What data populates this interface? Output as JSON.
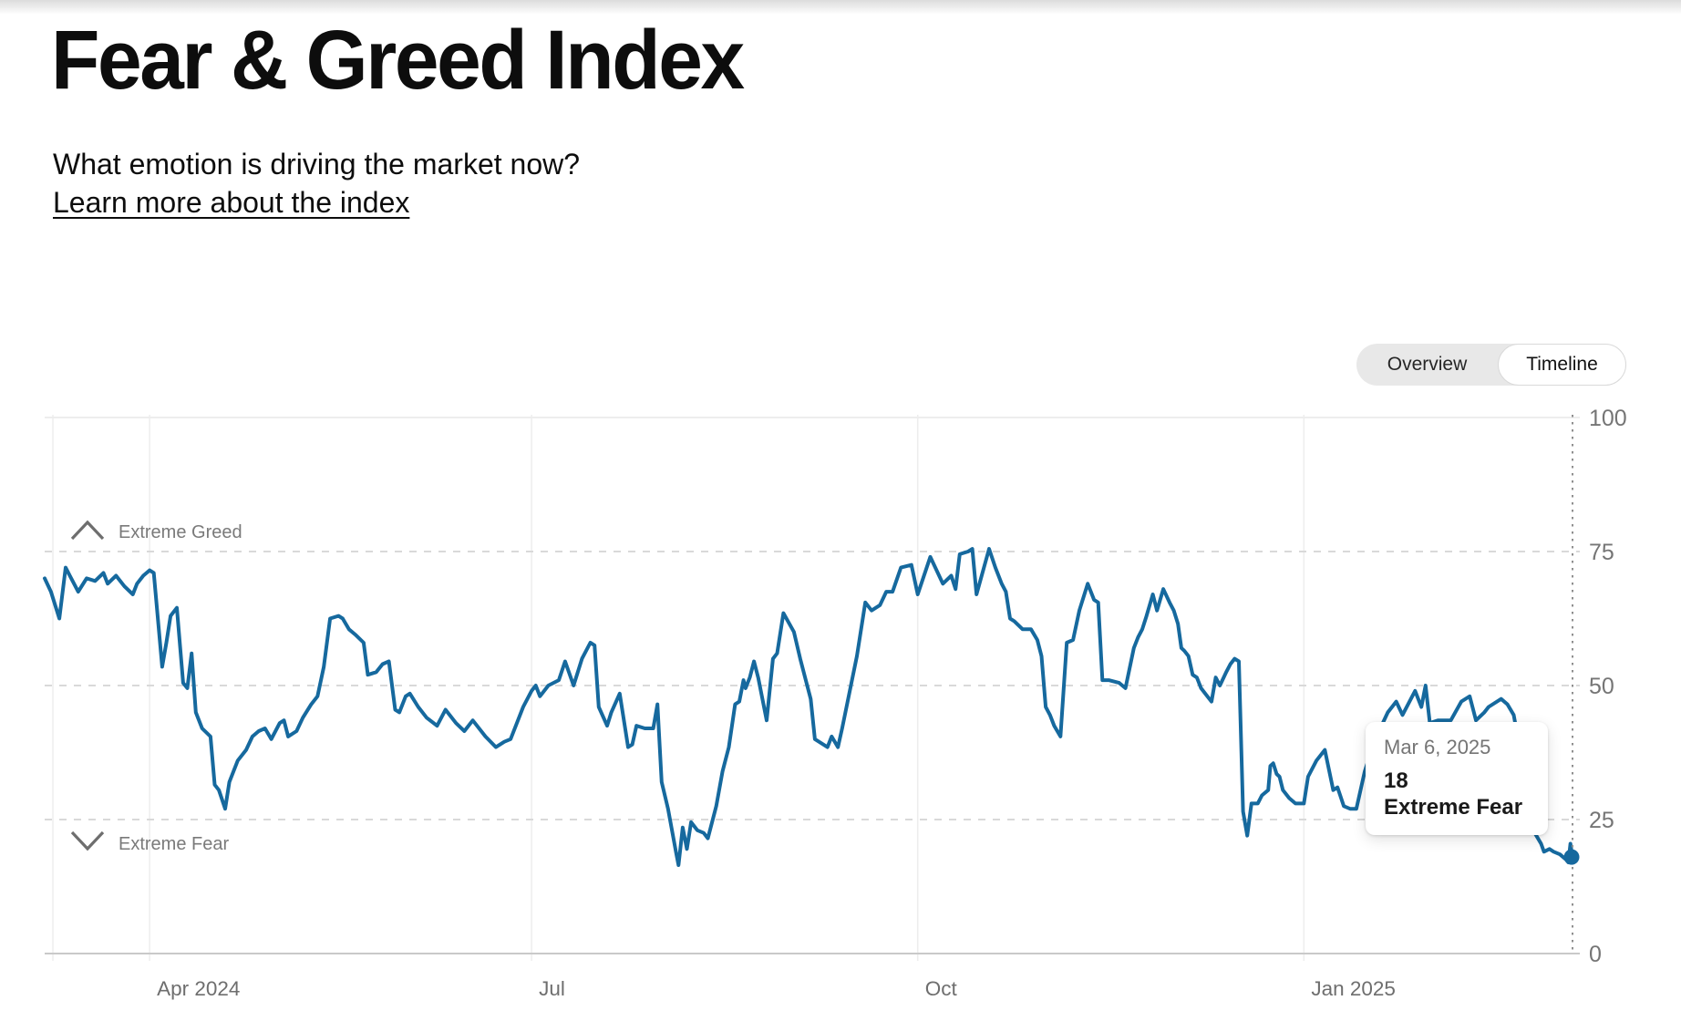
{
  "header": {
    "title": "Fear & Greed Index",
    "subtitle": "What emotion is driving the market now?",
    "link_label": "Learn more about the index"
  },
  "toggle": {
    "options": [
      "Overview",
      "Timeline"
    ],
    "selected": "Timeline"
  },
  "chart_data": {
    "type": "line",
    "title": "Fear & Greed Index timeline",
    "series_name": "Fear & Greed Index (market sentiment, 0-100)",
    "line_color": "#16699e",
    "x_axis": {
      "start_date": "Mar 7, 2024",
      "end_date": "Mar 6, 2025",
      "total_days": 364,
      "month_ticks": [
        {
          "label": "Apr 2024",
          "day": 25
        },
        {
          "label": "Jul",
          "day": 116
        },
        {
          "label": "Oct",
          "day": 208
        },
        {
          "label": "Jan 2025",
          "day": 300
        }
      ]
    },
    "y_axis": {
      "range": [
        0,
        100
      ],
      "ticks": [
        0,
        25,
        50,
        75,
        100
      ],
      "dashed_levels": [
        25,
        50,
        75
      ]
    },
    "zone_labels": [
      {
        "label": "Extreme Greed",
        "level": 75,
        "icon": "chevron-up-icon"
      },
      {
        "label": "Extreme Fear",
        "level": 25,
        "icon": "chevron-down-icon"
      }
    ],
    "tooltip": {
      "date": "Mar 6, 2025",
      "value": 18,
      "sentiment": "Extreme Fear"
    },
    "current": {
      "day": 364,
      "value": 18
    },
    "points": [
      [
        0,
        70
      ],
      [
        1.5,
        67.5
      ],
      [
        3.5,
        62.5
      ],
      [
        5,
        72
      ],
      [
        6,
        70.5
      ],
      [
        8,
        67.5
      ],
      [
        10,
        70
      ],
      [
        12,
        69.5
      ],
      [
        14,
        71
      ],
      [
        15,
        69
      ],
      [
        17,
        70.5
      ],
      [
        19,
        68.5
      ],
      [
        21,
        67
      ],
      [
        22,
        69
      ],
      [
        23.5,
        70.5
      ],
      [
        25,
        71.5
      ],
      [
        26,
        71
      ],
      [
        28,
        53.5
      ],
      [
        29,
        58
      ],
      [
        30,
        63
      ],
      [
        31.5,
        64.5
      ],
      [
        33,
        50.5
      ],
      [
        34,
        49.5
      ],
      [
        35,
        56
      ],
      [
        36,
        45
      ],
      [
        37.5,
        42
      ],
      [
        39.5,
        40.5
      ],
      [
        40.5,
        31.5
      ],
      [
        41.5,
        30.5
      ],
      [
        43,
        27
      ],
      [
        44,
        32
      ],
      [
        46,
        36
      ],
      [
        48,
        38
      ],
      [
        49.5,
        40.5
      ],
      [
        51,
        41.5
      ],
      [
        52.5,
        42
      ],
      [
        54,
        40
      ],
      [
        56,
        43
      ],
      [
        57,
        43.5
      ],
      [
        58,
        40.5
      ],
      [
        60,
        41.5
      ],
      [
        61.5,
        44
      ],
      [
        63.5,
        46.5
      ],
      [
        65,
        48
      ],
      [
        66.5,
        53.5
      ],
      [
        68,
        62.5
      ],
      [
        70,
        63
      ],
      [
        71,
        62.5
      ],
      [
        72.5,
        60.5
      ],
      [
        74,
        59.5
      ],
      [
        76,
        58
      ],
      [
        77,
        52
      ],
      [
        79,
        52.5
      ],
      [
        80.5,
        54
      ],
      [
        82,
        54.5
      ],
      [
        83.5,
        45.5
      ],
      [
        84.5,
        45
      ],
      [
        86,
        48
      ],
      [
        87,
        48.5
      ],
      [
        89,
        46
      ],
      [
        91,
        44
      ],
      [
        93.5,
        42.5
      ],
      [
        95.5,
        45.5
      ],
      [
        98,
        43
      ],
      [
        100,
        41.5
      ],
      [
        102,
        43.5
      ],
      [
        105,
        40.5
      ],
      [
        107.5,
        38.5
      ],
      [
        109.5,
        39.5
      ],
      [
        111,
        40
      ],
      [
        114,
        46
      ],
      [
        116,
        49
      ],
      [
        117,
        50
      ],
      [
        118,
        48
      ],
      [
        120,
        50
      ],
      [
        122.5,
        51
      ],
      [
        124,
        54.5
      ],
      [
        126,
        50
      ],
      [
        128,
        55
      ],
      [
        130,
        58
      ],
      [
        131,
        57.5
      ],
      [
        132,
        46
      ],
      [
        134,
        42.5
      ],
      [
        135,
        45
      ],
      [
        137,
        48.5
      ],
      [
        139,
        38.5
      ],
      [
        140,
        39
      ],
      [
        141,
        42.5
      ],
      [
        143,
        42
      ],
      [
        145,
        42
      ],
      [
        146,
        46.5
      ],
      [
        147,
        32
      ],
      [
        148.5,
        27
      ],
      [
        150.5,
        18.5
      ],
      [
        151,
        16.5
      ],
      [
        152,
        23.5
      ],
      [
        153,
        19.5
      ],
      [
        154,
        24.5
      ],
      [
        155.5,
        23
      ],
      [
        157,
        22.5
      ],
      [
        158,
        21.5
      ],
      [
        160,
        27.5
      ],
      [
        161.5,
        34
      ],
      [
        163,
        38.5
      ],
      [
        164.5,
        46.5
      ],
      [
        165.5,
        47
      ],
      [
        166.5,
        51
      ],
      [
        167,
        49.5
      ],
      [
        168,
        51.5
      ],
      [
        169,
        54.5
      ],
      [
        170,
        51.5
      ],
      [
        172,
        43.5
      ],
      [
        173.5,
        55
      ],
      [
        174.5,
        56
      ],
      [
        176,
        63.5
      ],
      [
        178.5,
        60
      ],
      [
        180,
        55
      ],
      [
        181.5,
        50.5
      ],
      [
        182.5,
        47.5
      ],
      [
        183.5,
        40
      ],
      [
        186.5,
        38.5
      ],
      [
        187.5,
        40.5
      ],
      [
        189,
        38.5
      ],
      [
        190,
        42
      ],
      [
        193.5,
        55.5
      ],
      [
        195.5,
        65.5
      ],
      [
        197,
        64
      ],
      [
        199,
        65
      ],
      [
        200.5,
        67.5
      ],
      [
        202,
        67.5
      ],
      [
        204,
        72
      ],
      [
        206.5,
        72.5
      ],
      [
        208,
        67
      ],
      [
        211,
        74
      ],
      [
        214,
        69
      ],
      [
        216,
        70.5
      ],
      [
        217,
        68
      ],
      [
        218,
        74.5
      ],
      [
        220,
        75
      ],
      [
        221,
        75.5
      ],
      [
        222,
        67
      ],
      [
        225,
        75.5
      ],
      [
        226.5,
        72
      ],
      [
        228,
        69
      ],
      [
        229,
        67.5
      ],
      [
        230,
        62.5
      ],
      [
        231,
        62
      ],
      [
        233,
        60.5
      ],
      [
        235,
        60.5
      ],
      [
        236.5,
        58.5
      ],
      [
        237.5,
        55.5
      ],
      [
        238.5,
        46
      ],
      [
        239.5,
        44.5
      ],
      [
        240.5,
        42.5
      ],
      [
        242,
        40.5
      ],
      [
        243.5,
        58
      ],
      [
        245,
        58.5
      ],
      [
        246.5,
        64
      ],
      [
        248.5,
        69
      ],
      [
        250,
        66
      ],
      [
        251,
        65.5
      ],
      [
        252,
        51
      ],
      [
        253.5,
        51
      ],
      [
        256,
        50.5
      ],
      [
        257.5,
        49.5
      ],
      [
        259.5,
        57
      ],
      [
        260.5,
        59
      ],
      [
        261.5,
        60.5
      ],
      [
        262.5,
        63
      ],
      [
        264,
        67
      ],
      [
        265,
        64
      ],
      [
        266.5,
        68
      ],
      [
        268,
        65.5
      ],
      [
        269,
        64
      ],
      [
        270,
        61.5
      ],
      [
        270.8,
        57
      ],
      [
        271.5,
        56.5
      ],
      [
        272.5,
        55.5
      ],
      [
        273.5,
        52
      ],
      [
        274.5,
        51.5
      ],
      [
        275.5,
        49.5
      ],
      [
        277,
        48
      ],
      [
        278,
        47
      ],
      [
        279,
        51.5
      ],
      [
        280,
        50
      ],
      [
        281.5,
        52.5
      ],
      [
        282.5,
        54
      ],
      [
        283.5,
        55
      ],
      [
        284.5,
        54.5
      ],
      [
        285.5,
        26.5
      ],
      [
        286.5,
        22
      ],
      [
        287.5,
        28
      ],
      [
        289,
        28
      ],
      [
        290,
        29.5
      ],
      [
        291.5,
        30.5
      ],
      [
        292,
        35
      ],
      [
        292.7,
        35.5
      ],
      [
        293.5,
        33.5
      ],
      [
        294.2,
        33
      ],
      [
        295,
        30.5
      ],
      [
        296.5,
        29
      ],
      [
        298,
        28
      ],
      [
        299,
        28
      ],
      [
        300,
        28
      ],
      [
        301,
        33
      ],
      [
        303,
        36
      ],
      [
        305,
        38
      ],
      [
        307,
        30.5
      ],
      [
        308,
        31
      ],
      [
        309.5,
        27.5
      ],
      [
        311,
        27
      ],
      [
        312.5,
        27
      ],
      [
        314.5,
        34
      ],
      [
        317,
        40
      ],
      [
        320,
        45
      ],
      [
        322,
        47
      ],
      [
        323.5,
        44.5
      ],
      [
        326.5,
        49
      ],
      [
        328,
        46
      ],
      [
        329,
        50
      ],
      [
        330,
        43
      ],
      [
        332,
        43.5
      ],
      [
        335,
        43.5
      ],
      [
        337.5,
        47
      ],
      [
        339.5,
        48
      ],
      [
        341,
        43.5
      ],
      [
        343,
        45
      ],
      [
        344,
        46
      ],
      [
        347,
        47.5
      ],
      [
        348.5,
        46.5
      ],
      [
        350,
        44.5
      ],
      [
        352,
        36
      ],
      [
        353.5,
        28
      ],
      [
        355,
        22.5
      ],
      [
        356.5,
        20.5
      ],
      [
        357.2,
        19
      ],
      [
        358.5,
        19.5
      ],
      [
        359.5,
        19
      ],
      [
        361,
        18.5
      ],
      [
        362.5,
        17.5
      ],
      [
        363,
        17
      ],
      [
        363.5,
        20.5
      ],
      [
        364,
        18
      ]
    ]
  },
  "palette": {
    "line": "#16699e",
    "grid_solid": "#ededed",
    "grid_dashed": "#d9d9d9",
    "axis_line": "#c9c9c9",
    "axis_text": "#757575",
    "month_text": "#6e6e6e",
    "zone_text": "#7a7a7a",
    "cursor_line": "#8f8f8f",
    "tooltip_date": "#757575",
    "tooltip_value": "#1a1a1a"
  }
}
